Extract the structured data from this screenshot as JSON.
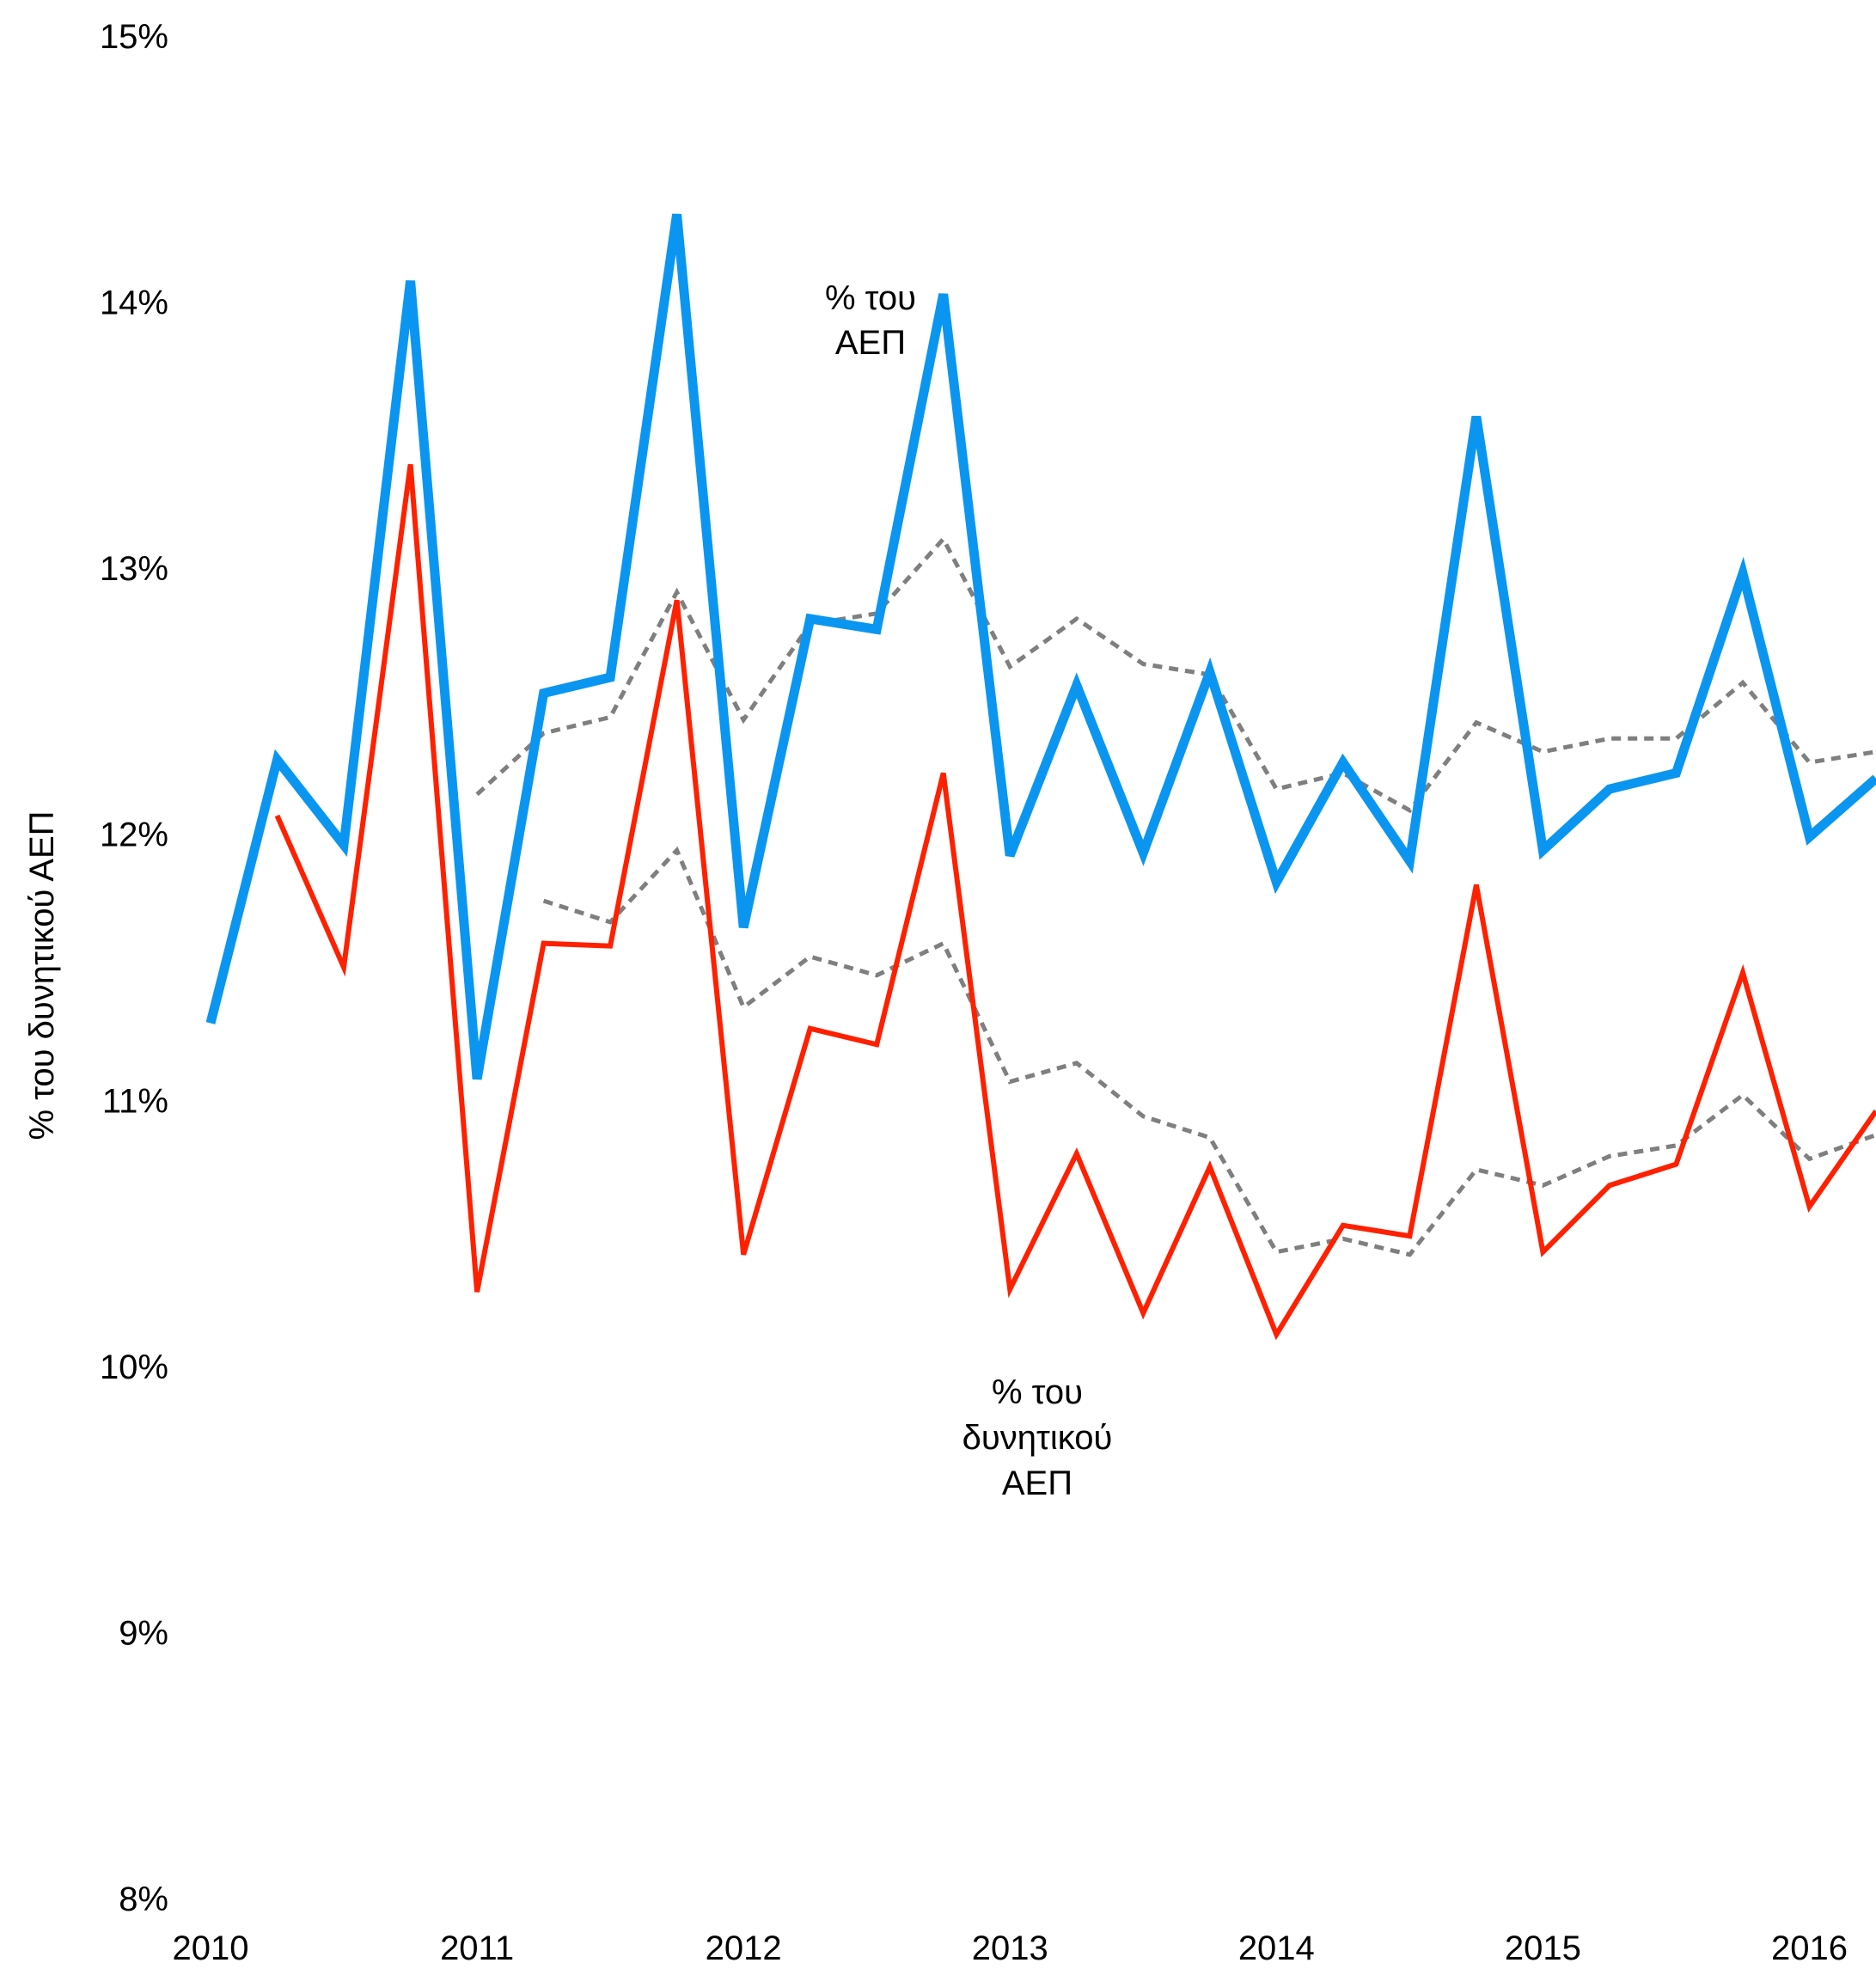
{
  "chart_data": {
    "type": "line",
    "xlabel": "",
    "ylabel": "% του δυνητικού ΑΕΠ",
    "ylim": [
      8,
      15
    ],
    "xlim": [
      2010,
      2016.25
    ],
    "grid": false,
    "legend": "none",
    "y_ticks": [
      "15%",
      "14%",
      "13%",
      "12%",
      "11%",
      "10%",
      "9%",
      "8%"
    ],
    "x_ticks": [
      "2010",
      "2011",
      "2012",
      "2013",
      "2014",
      "2015",
      "2016"
    ],
    "annotations": [
      {
        "lines": [
          "% του",
          "ΑΕΠ"
        ],
        "series": "blue"
      },
      {
        "lines": [
          "% του",
          "δυνητικού",
          "ΑΕΠ"
        ],
        "series": "red"
      }
    ],
    "series": [
      {
        "color": "#0a96f0",
        "dashed": false,
        "x": [
          2010,
          2010.25,
          2010.5,
          2010.75,
          2011,
          2011.25,
          2011.5,
          2011.75,
          2012,
          2012.25,
          2012.5,
          2012.75,
          2013,
          2013.25,
          2013.5,
          2013.75,
          2014,
          2014.25,
          2014.5,
          2014.75,
          2015,
          2015.25,
          2015.5,
          2015.75,
          2016,
          2016.25
        ],
        "values": [
          11.29,
          12.28,
          11.96,
          14.08,
          11.08,
          12.53,
          12.59,
          14.33,
          11.65,
          12.81,
          12.77,
          14.03,
          11.92,
          12.56,
          11.93,
          12.61,
          11.82,
          12.27,
          11.9,
          13.57,
          11.94,
          12.17,
          12.23,
          12.98,
          11.99,
          12.21
        ]
      },
      {
        "color": "#ff2000",
        "dashed": false,
        "x": [
          2010.25,
          2010.5,
          2010.75,
          2011,
          2011.25,
          2011.5,
          2011.75,
          2012,
          2012.25,
          2012.5,
          2012.75,
          2013,
          2013.25,
          2013.5,
          2013.75,
          2014,
          2014.25,
          2014.5,
          2014.75,
          2015,
          2015.25,
          2015.5,
          2015.75,
          2016,
          2016.25
        ],
        "values": [
          12.07,
          11.5,
          13.39,
          10.28,
          11.59,
          11.58,
          12.88,
          10.42,
          11.27,
          11.21,
          12.23,
          10.29,
          10.8,
          10.2,
          10.75,
          10.12,
          10.53,
          10.49,
          11.81,
          10.43,
          10.68,
          10.76,
          11.48,
          10.6,
          10.96
        ]
      },
      {
        "color": "#7f7f7f",
        "dashed": true,
        "x": [
          2011,
          2011.25,
          2011.5,
          2011.75,
          2012,
          2012.25,
          2012.5,
          2012.75,
          2013,
          2013.25,
          2013.5,
          2013.75,
          2014,
          2014.25,
          2014.5,
          2014.75,
          2015,
          2015.25,
          2015.5,
          2015.75,
          2016,
          2016.25
        ],
        "values": [
          12.15,
          12.38,
          12.44,
          12.91,
          12.43,
          12.79,
          12.83,
          13.11,
          12.63,
          12.81,
          12.64,
          12.6,
          12.17,
          12.23,
          12.09,
          12.42,
          12.31,
          12.36,
          12.36,
          12.57,
          12.27,
          12.31
        ]
      },
      {
        "color": "#7f7f7f",
        "dashed": true,
        "x": [
          2011.25,
          2011.5,
          2011.75,
          2012,
          2012.25,
          2012.5,
          2012.75,
          2013,
          2013.25,
          2013.5,
          2013.75,
          2014,
          2014.25,
          2014.5,
          2014.75,
          2015,
          2015.25,
          2015.5,
          2015.75,
          2016,
          2016.25
        ],
        "values": [
          11.75,
          11.67,
          11.94,
          11.35,
          11.54,
          11.47,
          11.59,
          11.07,
          11.14,
          10.94,
          10.86,
          10.43,
          10.48,
          10.42,
          10.74,
          10.68,
          10.79,
          10.83,
          11.02,
          10.78,
          10.87
        ]
      }
    ]
  }
}
